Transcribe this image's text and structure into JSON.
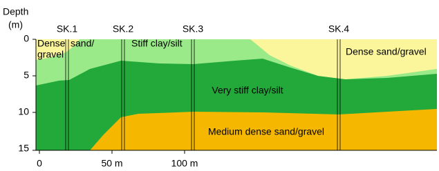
{
  "axis": {
    "y_title": "Depth",
    "y_unit": "(m)",
    "y_ticks": [
      "0",
      "5",
      "10",
      "15"
    ],
    "x_ticks": [
      "0",
      "50 m",
      "100 m"
    ]
  },
  "boreholes": [
    "SK.1",
    "SK.2",
    "SK.3",
    "SK.4"
  ],
  "layers": {
    "top_left": [
      "Dense",
      "sand/",
      "gravel"
    ],
    "stiff": "Stiff clay/silt",
    "top_right": "Dense sand/gravel",
    "very_stiff": "Very stiff clay/silt",
    "medium": "Medium dense sand/gravel"
  }
}
